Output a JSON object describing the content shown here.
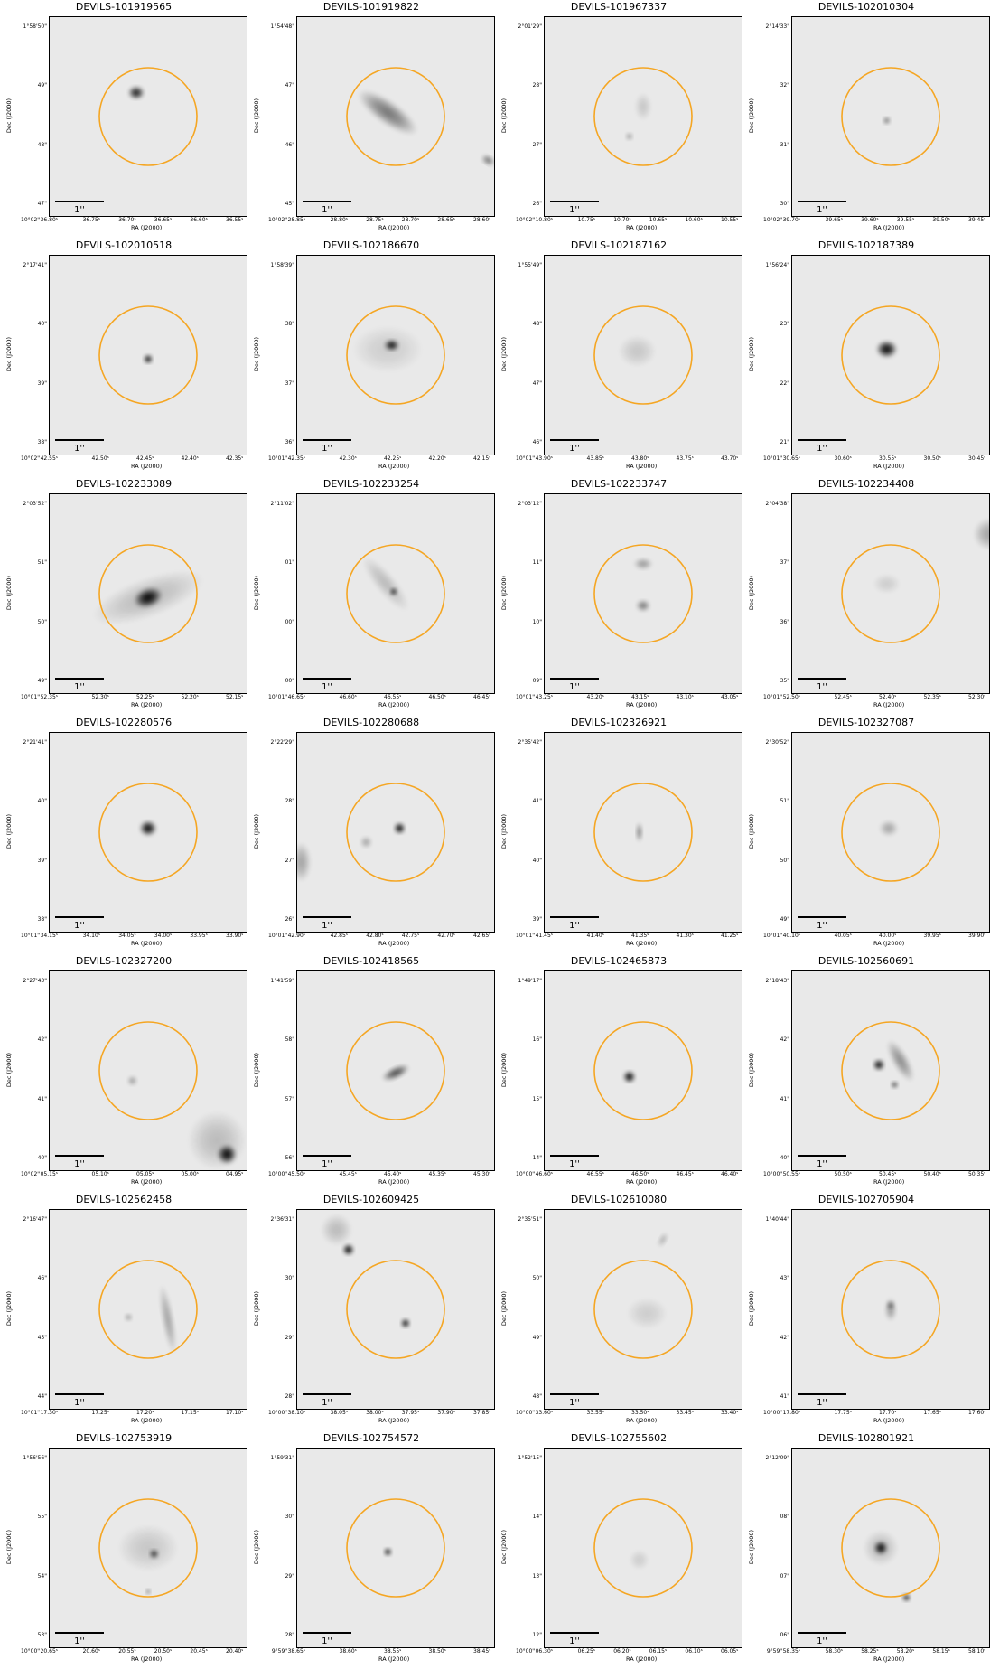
{
  "axis_labels": {
    "x": "RA (J2000)",
    "y": "Dec (J2000)"
  },
  "scale_bar_label": "1''",
  "aperture_color": "#f5a623",
  "panels": [
    {
      "title": "DEVILS-101919565",
      "yticks": [
        "1°58'50\"",
        "49\"",
        "48\"",
        "47\""
      ],
      "xticks": [
        "10°02''36.80ˢ",
        "36.75ˢ",
        "36.70ˢ",
        "36.65ˢ",
        "36.60ˢ",
        "36.55ˢ"
      ],
      "sources": [
        {
          "x": 0.44,
          "y": 0.38,
          "r": 0.035,
          "rx": 1.2,
          "op": 0.9
        }
      ]
    },
    {
      "title": "DEVILS-101919822",
      "yticks": [
        "1°54'48\"",
        "47\"",
        "46\"",
        "45\""
      ],
      "xticks": [
        "10°02''28.85ˢ",
        "28.80ˢ",
        "28.75ˢ",
        "28.70ˢ",
        "28.65ˢ",
        "28.60ˢ"
      ],
      "sources": [
        {
          "x": 0.46,
          "y": 0.48,
          "r": 0.06,
          "rx": 3.0,
          "rot": 35,
          "op": 0.5
        },
        {
          "x": 0.97,
          "y": 0.72,
          "r": 0.025,
          "rx": 1.5,
          "rot": 30,
          "op": 0.5
        }
      ]
    },
    {
      "title": "DEVILS-101967337",
      "yticks": [
        "2°01'29\"",
        "28\"",
        "27\"",
        "26\""
      ],
      "xticks": [
        "10°02''10.80ˢ",
        "10.75ˢ",
        "10.70ˢ",
        "10.65ˢ",
        "10.60ˢ",
        "10.55ˢ"
      ],
      "sources": [
        {
          "x": 0.5,
          "y": 0.45,
          "r": 0.07,
          "rx": 0.6,
          "op": 0.15
        },
        {
          "x": 0.43,
          "y": 0.6,
          "r": 0.02,
          "rx": 1,
          "op": 0.35
        }
      ]
    },
    {
      "title": "DEVILS-102010304",
      "yticks": [
        "2°14'33\"",
        "32\"",
        "31\"",
        "30\""
      ],
      "xticks": [
        "10°02''39.70ˢ",
        "39.65ˢ",
        "39.60ˢ",
        "39.55ˢ",
        "39.50ˢ",
        "39.45ˢ"
      ],
      "sources": [
        {
          "x": 0.48,
          "y": 0.52,
          "r": 0.02,
          "rx": 1,
          "op": 0.55
        }
      ]
    },
    {
      "title": "DEVILS-102010518",
      "yticks": [
        "2°17'41\"",
        "40\"",
        "39\"",
        "38\""
      ],
      "xticks": [
        "10°02''42.55ˢ",
        "42.50ˢ",
        "42.45ˢ",
        "42.40ˢ",
        "42.35ˢ"
      ],
      "sources": [
        {
          "x": 0.5,
          "y": 0.52,
          "r": 0.025,
          "rx": 1,
          "op": 0.95
        }
      ]
    },
    {
      "title": "DEVILS-102186670",
      "yticks": [
        "1°58'39\"",
        "38\"",
        "37\"",
        "36\""
      ],
      "xticks": [
        "10°01''42.35ˢ",
        "42.30ˢ",
        "42.25ˢ",
        "42.20ˢ",
        "42.15ˢ"
      ],
      "sources": [
        {
          "x": 0.48,
          "y": 0.45,
          "r": 0.03,
          "rx": 1.3,
          "op": 0.95
        },
        {
          "x": 0.46,
          "y": 0.47,
          "r": 0.12,
          "rx": 1.5,
          "op": 0.12
        }
      ]
    },
    {
      "title": "DEVILS-102187162",
      "yticks": [
        "1°55'49\"",
        "48\"",
        "47\"",
        "46\""
      ],
      "xticks": [
        "10°01''43.90ˢ",
        "43.85ˢ",
        "43.80ˢ",
        "43.75ˢ",
        "43.70ˢ"
      ],
      "sources": [
        {
          "x": 0.47,
          "y": 0.48,
          "r": 0.08,
          "rx": 1.2,
          "op": 0.15
        }
      ]
    },
    {
      "title": "DEVILS-102187389",
      "yticks": [
        "1°56'24\"",
        "23\"",
        "22\"",
        "21\""
      ],
      "xticks": [
        "10°01''30.65ˢ",
        "30.60ˢ",
        "30.55ˢ",
        "30.50ˢ",
        "30.45ˢ"
      ],
      "sources": [
        {
          "x": 0.48,
          "y": 0.47,
          "r": 0.045,
          "rx": 1.2,
          "op": 1.0
        }
      ]
    },
    {
      "title": "DEVILS-102233089",
      "yticks": [
        "2°03'52\"",
        "51\"",
        "50\"",
        "49\""
      ],
      "xticks": [
        "10°01''52.35ˢ",
        "52.30ˢ",
        "52.25ˢ",
        "52.20ˢ",
        "52.15ˢ"
      ],
      "sources": [
        {
          "x": 0.5,
          "y": 0.52,
          "r": 0.05,
          "rx": 1.5,
          "rot": -20,
          "op": 1.0
        },
        {
          "x": 0.5,
          "y": 0.52,
          "r": 0.1,
          "rx": 3,
          "rot": -20,
          "op": 0.2
        }
      ]
    },
    {
      "title": "DEVILS-102233254",
      "yticks": [
        "2°11'02\"",
        "01\"",
        "00\"",
        "00\""
      ],
      "xticks": [
        "10°01''46.65ˢ",
        "46.60ˢ",
        "46.55ˢ",
        "46.50ˢ",
        "46.45ˢ"
      ],
      "sources": [
        {
          "x": 0.49,
          "y": 0.49,
          "r": 0.02,
          "rx": 1,
          "op": 0.9
        },
        {
          "x": 0.45,
          "y": 0.45,
          "r": 0.05,
          "rx": 3.5,
          "rot": 50,
          "op": 0.2
        }
      ]
    },
    {
      "title": "DEVILS-102233747",
      "yticks": [
        "2°03'12\"",
        "11\"",
        "10\"",
        "09\""
      ],
      "xticks": [
        "10°01''43.25ˢ",
        "43.20ˢ",
        "43.15ˢ",
        "43.10ˢ",
        "43.05ˢ"
      ],
      "sources": [
        {
          "x": 0.5,
          "y": 0.56,
          "r": 0.03,
          "rx": 1.2,
          "op": 0.5
        },
        {
          "x": 0.5,
          "y": 0.35,
          "r": 0.03,
          "rx": 1.6,
          "op": 0.35
        }
      ]
    },
    {
      "title": "DEVILS-102234408",
      "yticks": [
        "2°04'38\"",
        "37\"",
        "36\"",
        "35\""
      ],
      "xticks": [
        "10°01''52.50ˢ",
        "52.45ˢ",
        "52.40ˢ",
        "52.35ˢ",
        "52.30ˢ"
      ],
      "sources": [
        {
          "x": 0.48,
          "y": 0.45,
          "r": 0.05,
          "rx": 1.4,
          "op": 0.12
        },
        {
          "x": 1.0,
          "y": 0.2,
          "r": 0.08,
          "rx": 1,
          "op": 0.3
        }
      ]
    },
    {
      "title": "DEVILS-102280576",
      "yticks": [
        "2°21'41\"",
        "40\"",
        "39\"",
        "38\""
      ],
      "xticks": [
        "10°01''34.15ˢ",
        "34.10ˢ",
        "34.05ˢ",
        "34.00ˢ",
        "33.95ˢ",
        "33.90ˢ"
      ],
      "sources": [
        {
          "x": 0.5,
          "y": 0.48,
          "r": 0.04,
          "rx": 1.1,
          "op": 1.0
        }
      ]
    },
    {
      "title": "DEVILS-102280688",
      "yticks": [
        "2°22'29\"",
        "28\"",
        "27\"",
        "26\""
      ],
      "xticks": [
        "10°01''42.90ˢ",
        "42.85ˢ",
        "42.80ˢ",
        "42.75ˢ",
        "42.70ˢ",
        "42.65ˢ"
      ],
      "sources": [
        {
          "x": 0.52,
          "y": 0.48,
          "r": 0.03,
          "rx": 1,
          "op": 1.0
        },
        {
          "x": 0.02,
          "y": 0.65,
          "r": 0.1,
          "rx": 0.5,
          "op": 0.3
        },
        {
          "x": 0.35,
          "y": 0.55,
          "r": 0.03,
          "rx": 1,
          "op": 0.3
        }
      ]
    },
    {
      "title": "DEVILS-102326921",
      "yticks": [
        "2°35'42\"",
        "41\"",
        "40\"",
        "39\""
      ],
      "xticks": [
        "10°01''41.45ˢ",
        "41.40ˢ",
        "41.35ˢ",
        "41.30ˢ",
        "41.25ˢ"
      ],
      "sources": [
        {
          "x": 0.48,
          "y": 0.5,
          "r": 0.05,
          "rx": 0.35,
          "op": 0.45
        }
      ]
    },
    {
      "title": "DEVILS-102327087",
      "yticks": [
        "2°30'52\"",
        "51\"",
        "50\"",
        "49\""
      ],
      "xticks": [
        "10°01''40.10ˢ",
        "40.05ˢ",
        "40.00ˢ",
        "39.95ˢ",
        "39.90ˢ"
      ],
      "sources": [
        {
          "x": 0.49,
          "y": 0.48,
          "r": 0.04,
          "rx": 1.2,
          "op": 0.3
        }
      ]
    },
    {
      "title": "DEVILS-102327200",
      "yticks": [
        "2°27'43\"",
        "42\"",
        "41\"",
        "40\""
      ],
      "xticks": [
        "10°02''05.15ˢ",
        "05.10ˢ",
        "05.05ˢ",
        "05.00ˢ",
        "04.95ˢ"
      ],
      "sources": [
        {
          "x": 0.42,
          "y": 0.55,
          "r": 0.025,
          "rx": 1,
          "op": 0.35
        },
        {
          "x": 0.9,
          "y": 0.92,
          "r": 0.05,
          "rx": 1,
          "op": 1.0
        },
        {
          "x": 0.85,
          "y": 0.85,
          "r": 0.15,
          "rx": 1,
          "op": 0.2
        }
      ]
    },
    {
      "title": "DEVILS-102418565",
      "yticks": [
        "1°41'59\"",
        "58\"",
        "57\"",
        "56\""
      ],
      "xticks": [
        "10°00''45.50ˢ",
        "45.45ˢ",
        "45.40ˢ",
        "45.35ˢ",
        "45.30ˢ"
      ],
      "sources": [
        {
          "x": 0.5,
          "y": 0.51,
          "r": 0.03,
          "rx": 2.5,
          "rot": -25,
          "op": 0.7
        }
      ]
    },
    {
      "title": "DEVILS-102465873",
      "yticks": [
        "1°49'17\"",
        "16\"",
        "15\"",
        "14\""
      ],
      "xticks": [
        "10°00''46.60ˢ",
        "46.55ˢ",
        "46.50ˢ",
        "46.45ˢ",
        "46.40ˢ"
      ],
      "sources": [
        {
          "x": 0.43,
          "y": 0.53,
          "r": 0.032,
          "rx": 1,
          "op": 1.0
        }
      ]
    },
    {
      "title": "DEVILS-102560691",
      "yticks": [
        "2°18'43\"",
        "42\"",
        "41\"",
        "40\""
      ],
      "xticks": [
        "10°00''50.55ˢ",
        "50.50ˢ",
        "50.45ˢ",
        "50.40ˢ",
        "50.35ˢ"
      ],
      "sources": [
        {
          "x": 0.44,
          "y": 0.47,
          "r": 0.03,
          "rx": 1,
          "op": 1.0
        },
        {
          "x": 0.55,
          "y": 0.45,
          "r": 0.04,
          "rx": 3,
          "rot": 60,
          "op": 0.4
        },
        {
          "x": 0.52,
          "y": 0.57,
          "r": 0.02,
          "rx": 1,
          "op": 0.7
        }
      ]
    },
    {
      "title": "DEVILS-102562458",
      "yticks": [
        "2°16'47\"",
        "46\"",
        "45\"",
        "44\""
      ],
      "xticks": [
        "10°01''17.30ˢ",
        "17.25ˢ",
        "17.20ˢ",
        "17.15ˢ",
        "17.10ˢ"
      ],
      "sources": [
        {
          "x": 0.6,
          "y": 0.55,
          "r": 0.03,
          "rx": 6,
          "rot": 80,
          "op": 0.3
        },
        {
          "x": 0.4,
          "y": 0.54,
          "r": 0.02,
          "rx": 1,
          "op": 0.35
        }
      ]
    },
    {
      "title": "DEVILS-102609425",
      "yticks": [
        "2°36'31\"",
        "30\"",
        "29\"",
        "28\""
      ],
      "xticks": [
        "10°00''38.10ˢ",
        "38.05ˢ",
        "38.00ˢ",
        "37.95ˢ",
        "37.90ˢ",
        "37.85ˢ"
      ],
      "sources": [
        {
          "x": 0.55,
          "y": 0.57,
          "r": 0.025,
          "rx": 1,
          "op": 0.95
        },
        {
          "x": 0.26,
          "y": 0.2,
          "r": 0.03,
          "rx": 1,
          "op": 1.0
        },
        {
          "x": 0.2,
          "y": 0.1,
          "r": 0.08,
          "rx": 1,
          "op": 0.2
        }
      ]
    },
    {
      "title": "DEVILS-102610080",
      "yticks": [
        "2°35'51\"",
        "50\"",
        "49\"",
        "48\""
      ],
      "xticks": [
        "10°00''33.60ˢ",
        "33.55ˢ",
        "33.50ˢ",
        "33.45ˢ",
        "33.40ˢ"
      ],
      "sources": [
        {
          "x": 0.52,
          "y": 0.52,
          "r": 0.08,
          "rx": 1.3,
          "op": 0.12
        },
        {
          "x": 0.6,
          "y": 0.15,
          "r": 0.02,
          "rx": 2,
          "rot": -60,
          "op": 0.25
        }
      ]
    },
    {
      "title": "DEVILS-102705904",
      "yticks": [
        "1°40'44\"",
        "43\"",
        "42\"",
        "41\""
      ],
      "xticks": [
        "10°00''17.80ˢ",
        "17.75ˢ",
        "17.70ˢ",
        "17.65ˢ",
        "17.60ˢ"
      ],
      "sources": [
        {
          "x": 0.5,
          "y": 0.5,
          "r": 0.06,
          "rx": 0.5,
          "op": 0.35
        },
        {
          "x": 0.5,
          "y": 0.48,
          "r": 0.02,
          "rx": 1,
          "op": 0.5
        }
      ]
    },
    {
      "title": "DEVILS-102753919",
      "yticks": [
        "1°56'56\"",
        "55\"",
        "54\"",
        "53\""
      ],
      "xticks": [
        "10°00''20.65ˢ",
        "20.60ˢ",
        "20.55ˢ",
        "20.50ˢ",
        "20.45ˢ",
        "20.40ˢ"
      ],
      "sources": [
        {
          "x": 0.53,
          "y": 0.53,
          "r": 0.025,
          "rx": 1,
          "op": 0.8
        },
        {
          "x": 0.5,
          "y": 0.5,
          "r": 0.12,
          "rx": 1.3,
          "op": 0.15
        },
        {
          "x": 0.5,
          "y": 0.72,
          "r": 0.015,
          "rx": 1,
          "op": 0.5
        }
      ]
    },
    {
      "title": "DEVILS-102754572",
      "yticks": [
        "1°59'31\"",
        "30\"",
        "29\"",
        "28\""
      ],
      "xticks": [
        "9°59''38.65ˢ",
        "38.60ˢ",
        "38.55ˢ",
        "38.50ˢ",
        "38.45ˢ"
      ],
      "sources": [
        {
          "x": 0.46,
          "y": 0.52,
          "r": 0.022,
          "rx": 1,
          "op": 0.9
        }
      ]
    },
    {
      "title": "DEVILS-102755602",
      "yticks": [
        "1°52'15\"",
        "14\"",
        "13\"",
        "12\""
      ],
      "xticks": [
        "10°00''06.30ˢ",
        "06.25ˢ",
        "06.20ˢ",
        "06.15ˢ",
        "06.10ˢ",
        "06.05ˢ"
      ],
      "sources": [
        {
          "x": 0.48,
          "y": 0.56,
          "r": 0.05,
          "rx": 1,
          "op": 0.12
        }
      ]
    },
    {
      "title": "DEVILS-102801921",
      "yticks": [
        "2°12'09\"",
        "08\"",
        "07\"",
        "06\""
      ],
      "xticks": [
        "9°59''58.35ˢ",
        "58.30ˢ",
        "58.25ˢ",
        "58.20ˢ",
        "58.15ˢ",
        "58.10ˢ"
      ],
      "sources": [
        {
          "x": 0.45,
          "y": 0.5,
          "r": 0.035,
          "rx": 1,
          "op": 1.0
        },
        {
          "x": 0.45,
          "y": 0.5,
          "r": 0.09,
          "rx": 1,
          "op": 0.2
        },
        {
          "x": 0.58,
          "y": 0.75,
          "r": 0.022,
          "rx": 1,
          "op": 0.85
        }
      ]
    }
  ]
}
